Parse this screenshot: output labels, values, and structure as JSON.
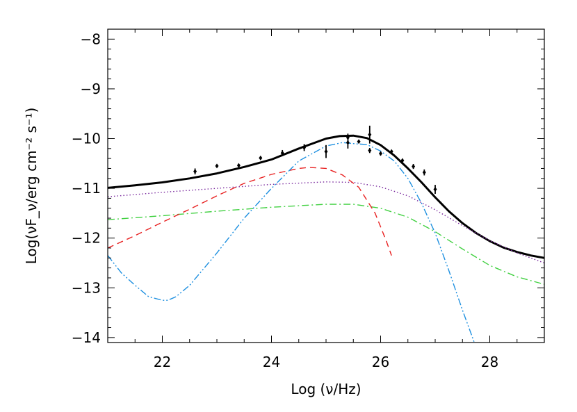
{
  "chart_data": {
    "type": "line",
    "title": "",
    "xlabel": "Log (ν/Hz)",
    "ylabel": "Log(νF_ν/erg cm⁻² s⁻¹)",
    "xlim": [
      21,
      29
    ],
    "ylim": [
      -14.1,
      -7.8
    ],
    "xticks": [
      22,
      24,
      26,
      28
    ],
    "yticks": [
      -14,
      -13,
      -12,
      -11,
      -10,
      -9,
      -8
    ],
    "grid": false,
    "legend": "none",
    "series": [
      {
        "key": "total",
        "color": "#000000",
        "style": "solid",
        "width": 3,
        "x": [
          21.0,
          21.5,
          22.0,
          22.5,
          23.0,
          23.5,
          24.0,
          24.5,
          25.0,
          25.25,
          25.5,
          25.75,
          26.0,
          26.25,
          26.5,
          26.75,
          27.0,
          27.25,
          27.5,
          27.75,
          28.0,
          28.25,
          28.5,
          28.75,
          29.0
        ],
        "y": [
          -10.99,
          -10.94,
          -10.88,
          -10.8,
          -10.7,
          -10.57,
          -10.42,
          -10.2,
          -10.0,
          -9.95,
          -9.94,
          -9.99,
          -10.13,
          -10.34,
          -10.6,
          -10.88,
          -11.18,
          -11.46,
          -11.7,
          -11.9,
          -12.06,
          -12.19,
          -12.28,
          -12.35,
          -12.4
        ]
      },
      {
        "key": "purple-dotted",
        "color": "#7a2a9e",
        "style": "dotted",
        "width": 1.4,
        "x": [
          21.0,
          22.0,
          23.0,
          24.0,
          25.0,
          25.5,
          26.0,
          26.5,
          27.0,
          27.5,
          28.0,
          28.5,
          29.0
        ],
        "y": [
          -11.17,
          -11.08,
          -11.0,
          -10.92,
          -10.87,
          -10.88,
          -10.97,
          -11.15,
          -11.43,
          -11.75,
          -12.05,
          -12.3,
          -12.5
        ]
      },
      {
        "key": "green-dashdot",
        "color": "#40d040",
        "style": "dashdot",
        "width": 1.4,
        "x": [
          21.0,
          22.0,
          23.0,
          24.0,
          24.5,
          25.0,
          25.5,
          26.0,
          26.5,
          27.0,
          27.5,
          28.0,
          28.5,
          29.0
        ],
        "y": [
          -11.63,
          -11.55,
          -11.46,
          -11.38,
          -11.35,
          -11.32,
          -11.32,
          -11.4,
          -11.58,
          -11.87,
          -12.22,
          -12.55,
          -12.78,
          -12.93
        ]
      },
      {
        "key": "red-dashed",
        "color": "#e82020",
        "style": "dashed",
        "width": 1.4,
        "x": [
          21.0,
          21.5,
          22.0,
          22.5,
          23.0,
          23.5,
          24.0,
          24.5,
          24.7,
          25.0,
          25.3,
          25.6,
          25.9,
          26.1,
          26.2
        ],
        "y": [
          -12.2,
          -11.95,
          -11.68,
          -11.42,
          -11.15,
          -10.9,
          -10.72,
          -10.6,
          -10.58,
          -10.6,
          -10.73,
          -10.98,
          -11.5,
          -12.05,
          -12.35
        ]
      },
      {
        "key": "blue-dashdotdot",
        "color": "#1e90e0",
        "style": "dashdotdot",
        "width": 1.4,
        "x": [
          21.0,
          21.25,
          21.5,
          21.75,
          22.0,
          22.1,
          22.25,
          22.5,
          23.0,
          23.5,
          24.0,
          24.5,
          25.0,
          25.3,
          25.5,
          25.75,
          26.0,
          26.25,
          26.5,
          26.75,
          27.0,
          27.25,
          27.5,
          27.75
        ],
        "y": [
          -12.35,
          -12.7,
          -12.95,
          -13.18,
          -13.25,
          -13.25,
          -13.18,
          -12.95,
          -12.3,
          -11.6,
          -11.0,
          -10.45,
          -10.15,
          -10.08,
          -10.1,
          -10.12,
          -10.25,
          -10.45,
          -10.8,
          -11.3,
          -11.9,
          -12.65,
          -13.45,
          -14.2
        ]
      }
    ],
    "observations": {
      "color": "#000000",
      "points": [
        {
          "x": 22.6,
          "y": -10.66,
          "err": 0.06
        },
        {
          "x": 23.0,
          "y": -10.55,
          "err": 0.03
        },
        {
          "x": 23.4,
          "y": -10.54,
          "err": 0.03
        },
        {
          "x": 23.8,
          "y": -10.39,
          "err": 0.03
        },
        {
          "x": 24.2,
          "y": -10.29,
          "err": 0.06
        },
        {
          "x": 24.6,
          "y": -10.18,
          "err": 0.07
        },
        {
          "x": 25.0,
          "y": -10.26,
          "err": 0.13
        },
        {
          "x": 25.4,
          "y": -9.98,
          "err": 0.08
        },
        {
          "x": 25.4,
          "y": -10.08,
          "err": 0.12
        },
        {
          "x": 25.6,
          "y": -10.06,
          "err": 0.03
        },
        {
          "x": 25.8,
          "y": -9.92,
          "err": 0.18
        },
        {
          "x": 25.8,
          "y": -10.24,
          "err": 0.05
        },
        {
          "x": 26.0,
          "y": -10.3,
          "err": 0.04
        },
        {
          "x": 26.2,
          "y": -10.26,
          "err": 0.03
        },
        {
          "x": 26.4,
          "y": -10.44,
          "err": 0.03
        },
        {
          "x": 26.6,
          "y": -10.56,
          "err": 0.05
        },
        {
          "x": 26.8,
          "y": -10.68,
          "err": 0.06
        },
        {
          "x": 27.0,
          "y": -11.02,
          "err": 0.09
        }
      ]
    }
  }
}
